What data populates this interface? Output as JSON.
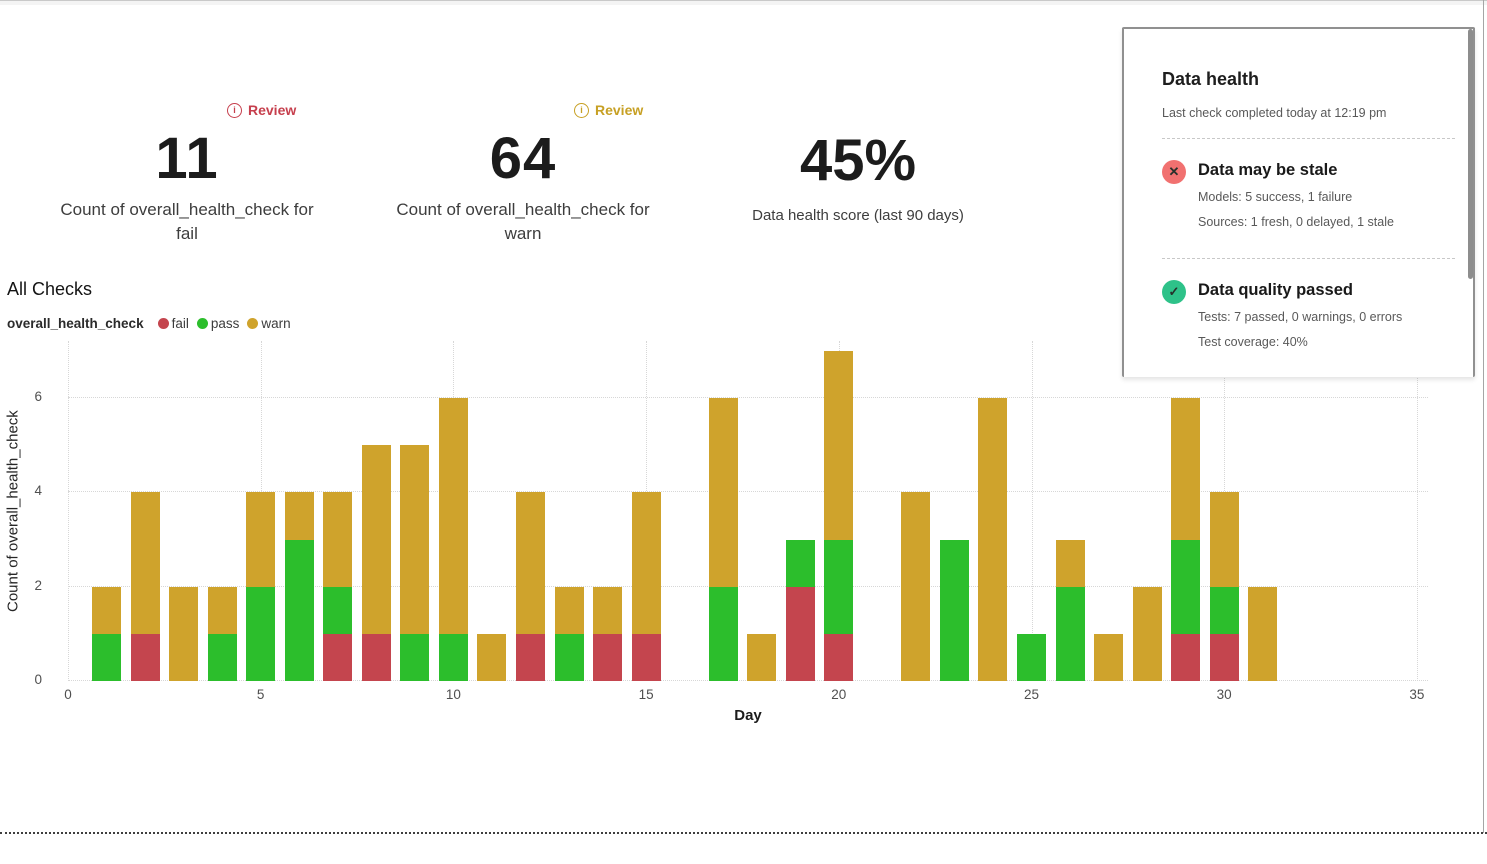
{
  "metrics": [
    {
      "review_label": "Review",
      "review_color": "#c63f4d",
      "value": "11",
      "label": "Count of overall_health_check for fail"
    },
    {
      "review_label": "Review",
      "review_color": "#c7a024",
      "value": "64",
      "label": "Count of overall_health_check for warn"
    },
    {
      "value": "45%",
      "label": "Data health score (last 90 days)"
    }
  ],
  "section": {
    "title": "All Checks",
    "legend_group": "overall_health_check"
  },
  "chart_data": {
    "type": "bar",
    "stacked": true,
    "title": "All Checks",
    "xlabel": "Day",
    "ylabel": "Count of overall_health_check",
    "xlim": [
      0,
      35
    ],
    "ylim": [
      0,
      7.2
    ],
    "x_ticks": [
      0,
      5,
      10,
      15,
      20,
      25,
      30,
      35
    ],
    "y_ticks": [
      0,
      2,
      4,
      6
    ],
    "grid": "dotted",
    "legend_position": "top-left",
    "x": [
      1,
      2,
      3,
      4,
      5,
      6,
      7,
      8,
      9,
      10,
      11,
      12,
      13,
      14,
      15,
      17,
      18,
      19,
      20,
      22,
      23,
      24,
      25,
      26,
      27,
      28,
      29,
      30,
      31
    ],
    "series": [
      {
        "name": "fail",
        "color": "#c4454e",
        "values": [
          0,
          1,
          0,
          0,
          0,
          0,
          1,
          1,
          0,
          0,
          0,
          1,
          0,
          1,
          1,
          0,
          0,
          2,
          1,
          0,
          0,
          0,
          0,
          0,
          0,
          0,
          1,
          1,
          0
        ]
      },
      {
        "name": "pass",
        "color": "#2cbe2c",
        "values": [
          1,
          0,
          0,
          1,
          2,
          3,
          1,
          0,
          1,
          1,
          0,
          0,
          1,
          0,
          0,
          2,
          0,
          1,
          2,
          0,
          3,
          0,
          1,
          2,
          0,
          0,
          2,
          1,
          0
        ]
      },
      {
        "name": "warn",
        "color": "#cfa32c",
        "values": [
          1,
          3,
          2,
          1,
          2,
          1,
          2,
          4,
          4,
          5,
          1,
          3,
          1,
          1,
          3,
          4,
          1,
          0,
          4,
          4,
          0,
          6,
          0,
          1,
          1,
          2,
          3,
          2,
          2
        ]
      }
    ]
  },
  "panel": {
    "title": "Data health",
    "subtitle": "Last check completed today at 12:19 pm",
    "items": [
      {
        "icon": "x-circle-icon",
        "icon_glyph": "✕",
        "icon_color": "#f17170",
        "title": "Data may be stale",
        "lines": [
          "Models: 5 success, 1 failure",
          "Sources: 1 fresh, 0 delayed, 1 stale"
        ]
      },
      {
        "icon": "check-circle-icon",
        "icon_glyph": "✓",
        "icon_color": "#2ec289",
        "title": "Data quality passed",
        "lines": [
          "Tests: 7 passed, 0 warnings, 0 errors",
          "Test coverage: 40%"
        ]
      }
    ]
  }
}
